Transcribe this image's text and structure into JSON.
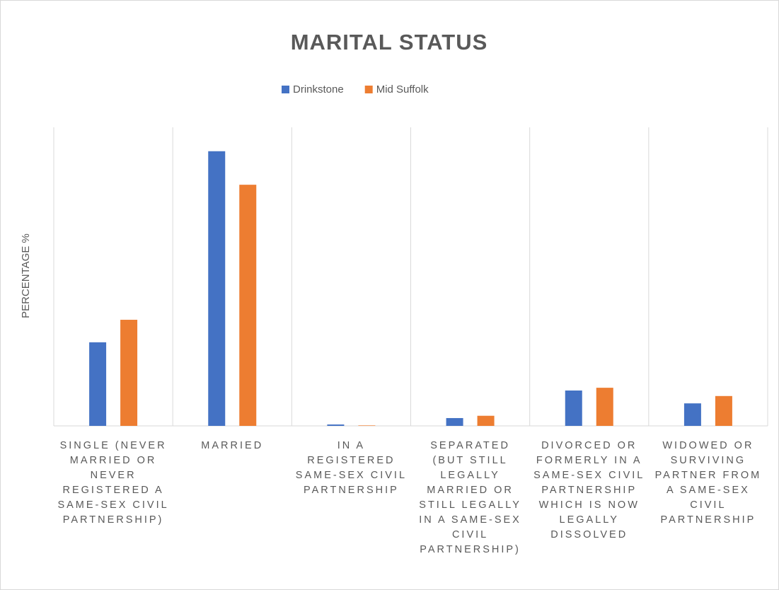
{
  "chart_data": {
    "type": "bar",
    "title": "MARITAL STATUS",
    "y_label": "PERCENTAGE %",
    "categories": [
      "SINGLE (NEVER MARRIED OR NEVER REGISTERED A SAME-SEX CIVIL PARTNERSHIP)",
      "MARRIED",
      "IN A REGISTERED SAME-SEX CIVIL PARTNERSHIP",
      "SEPARATED (BUT STILL LEGALLY MARRIED OR STILL LEGALLY IN A SAME-SEX CIVIL PARTNERSHIP)",
      "DIVORCED OR FORMERLY IN A SAME-SEX CIVIL PARTNERSHIP WHICH IS NOW LEGALLY DISSOLVED",
      "WIDOWED OR SURVIVING PARTNER FROM A SAME-SEX CIVIL PARTNERSHIP"
    ],
    "series": [
      {
        "name": "Drinkstone",
        "color": "#4472c4",
        "values": [
          18.2,
          59.8,
          0.3,
          1.7,
          7.7,
          4.9
        ]
      },
      {
        "name": "Mid Suffolk",
        "color": "#ed7d31",
        "values": [
          23.1,
          52.5,
          0.1,
          2.2,
          8.3,
          6.5
        ]
      }
    ],
    "ylim": [
      0,
      65
    ],
    "legend": "top",
    "grid": true
  }
}
